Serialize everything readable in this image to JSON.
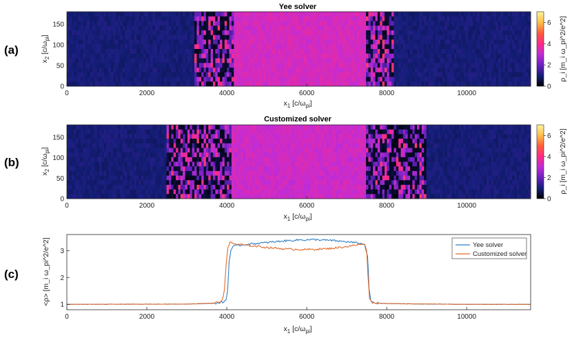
{
  "chart_data": [
    {
      "type": "heatmap",
      "panel": "(a)",
      "title": "Yee solver",
      "x": [
        0,
        11600
      ],
      "y": [
        0,
        180
      ],
      "xticks": [
        0,
        2000,
        4000,
        6000,
        8000,
        10000
      ],
      "yticks": [
        0,
        50,
        100,
        150
      ],
      "xlabel": {
        "base": "x",
        "sub1": "1",
        "mid": " [c/",
        "greek": "ω",
        "sub2": "pi",
        "end": "]"
      },
      "ylabel": {
        "base": "x",
        "sub1": "2",
        "mid": " [c/",
        "greek": "ω",
        "sub2": "pi",
        "end": "]"
      },
      "colorbar": {
        "min": 0,
        "max": 7,
        "ticks": [
          0,
          2,
          4,
          6
        ],
        "label": "ρ_i [m_i ω_pi^2/e^2]"
      },
      "regions": {
        "upstream_density": 1,
        "shock_left": [
          3200,
          4150
        ],
        "downstream_density": 3.3,
        "shock_right": [
          7500,
          8200
        ]
      }
    },
    {
      "type": "heatmap",
      "panel": "(b)",
      "title": "Customized solver",
      "x": [
        0,
        11600
      ],
      "y": [
        0,
        180
      ],
      "xticks": [
        0,
        2000,
        4000,
        6000,
        8000,
        10000
      ],
      "yticks": [
        0,
        50,
        100,
        150
      ],
      "xlabel": {
        "base": "x",
        "sub1": "1",
        "mid": " [c/",
        "greek": "ω",
        "sub2": "pi",
        "end": "]"
      },
      "ylabel": {
        "base": "x",
        "sub1": "2",
        "mid": " [c/",
        "greek": "ω",
        "sub2": "pi",
        "end": "]"
      },
      "colorbar": {
        "min": 0,
        "max": 7,
        "ticks": [
          0,
          2,
          4,
          6
        ],
        "label": "ρ_i [m_i ω_pi^2/e^2]"
      },
      "regions": {
        "upstream_density": 1,
        "shock_left": [
          2500,
          4100
        ],
        "downstream_density": 3.2,
        "shock_right": [
          7500,
          9000
        ]
      }
    },
    {
      "type": "line",
      "panel": "(c)",
      "title": "",
      "x": [
        0,
        11600
      ],
      "xticks": [
        0,
        2000,
        4000,
        6000,
        8000,
        10000
      ],
      "yticks": [
        1,
        2,
        3
      ],
      "ylim": [
        0.8,
        3.6
      ],
      "xlabel": {
        "base": "x",
        "sub1": "1",
        "mid": " [c/",
        "greek": "ω",
        "sub2": "pi",
        "end": "]"
      },
      "ylabel": "<ρ> [m_i ω_pi^2/e^2]",
      "legend": "top-right",
      "series": [
        {
          "name": "Yee solver",
          "color": "#2f7cc0",
          "x": [
            0,
            3000,
            3700,
            3900,
            3980,
            4020,
            4060,
            4100,
            4150,
            4300,
            4600,
            5000,
            5400,
            5800,
            6200,
            6600,
            7000,
            7300,
            7450,
            7520,
            7560,
            7600,
            7700,
            8000,
            8500,
            10000,
            11600
          ],
          "y": [
            1.0,
            1.01,
            1.04,
            1.08,
            1.15,
            1.5,
            2.6,
            3.0,
            3.15,
            3.2,
            3.25,
            3.3,
            3.36,
            3.4,
            3.41,
            3.38,
            3.33,
            3.28,
            3.22,
            2.8,
            1.6,
            1.12,
            1.05,
            1.03,
            1.02,
            1.0,
            1.0
          ]
        },
        {
          "name": "Customized solver",
          "color": "#e06a2c",
          "x": [
            0,
            3000,
            3700,
            3880,
            3940,
            3990,
            4030,
            4080,
            4200,
            4500,
            5000,
            5500,
            6000,
            6500,
            7000,
            7300,
            7450,
            7500,
            7530,
            7570,
            7620,
            7700,
            8000,
            8500,
            10000,
            11600
          ],
          "y": [
            1.0,
            1.01,
            1.05,
            1.12,
            1.5,
            2.6,
            3.15,
            3.3,
            3.25,
            3.2,
            3.12,
            3.06,
            3.04,
            3.07,
            3.15,
            3.22,
            3.26,
            3.0,
            2.1,
            1.25,
            1.08,
            1.05,
            1.03,
            1.02,
            1.0,
            1.0
          ]
        }
      ]
    }
  ]
}
